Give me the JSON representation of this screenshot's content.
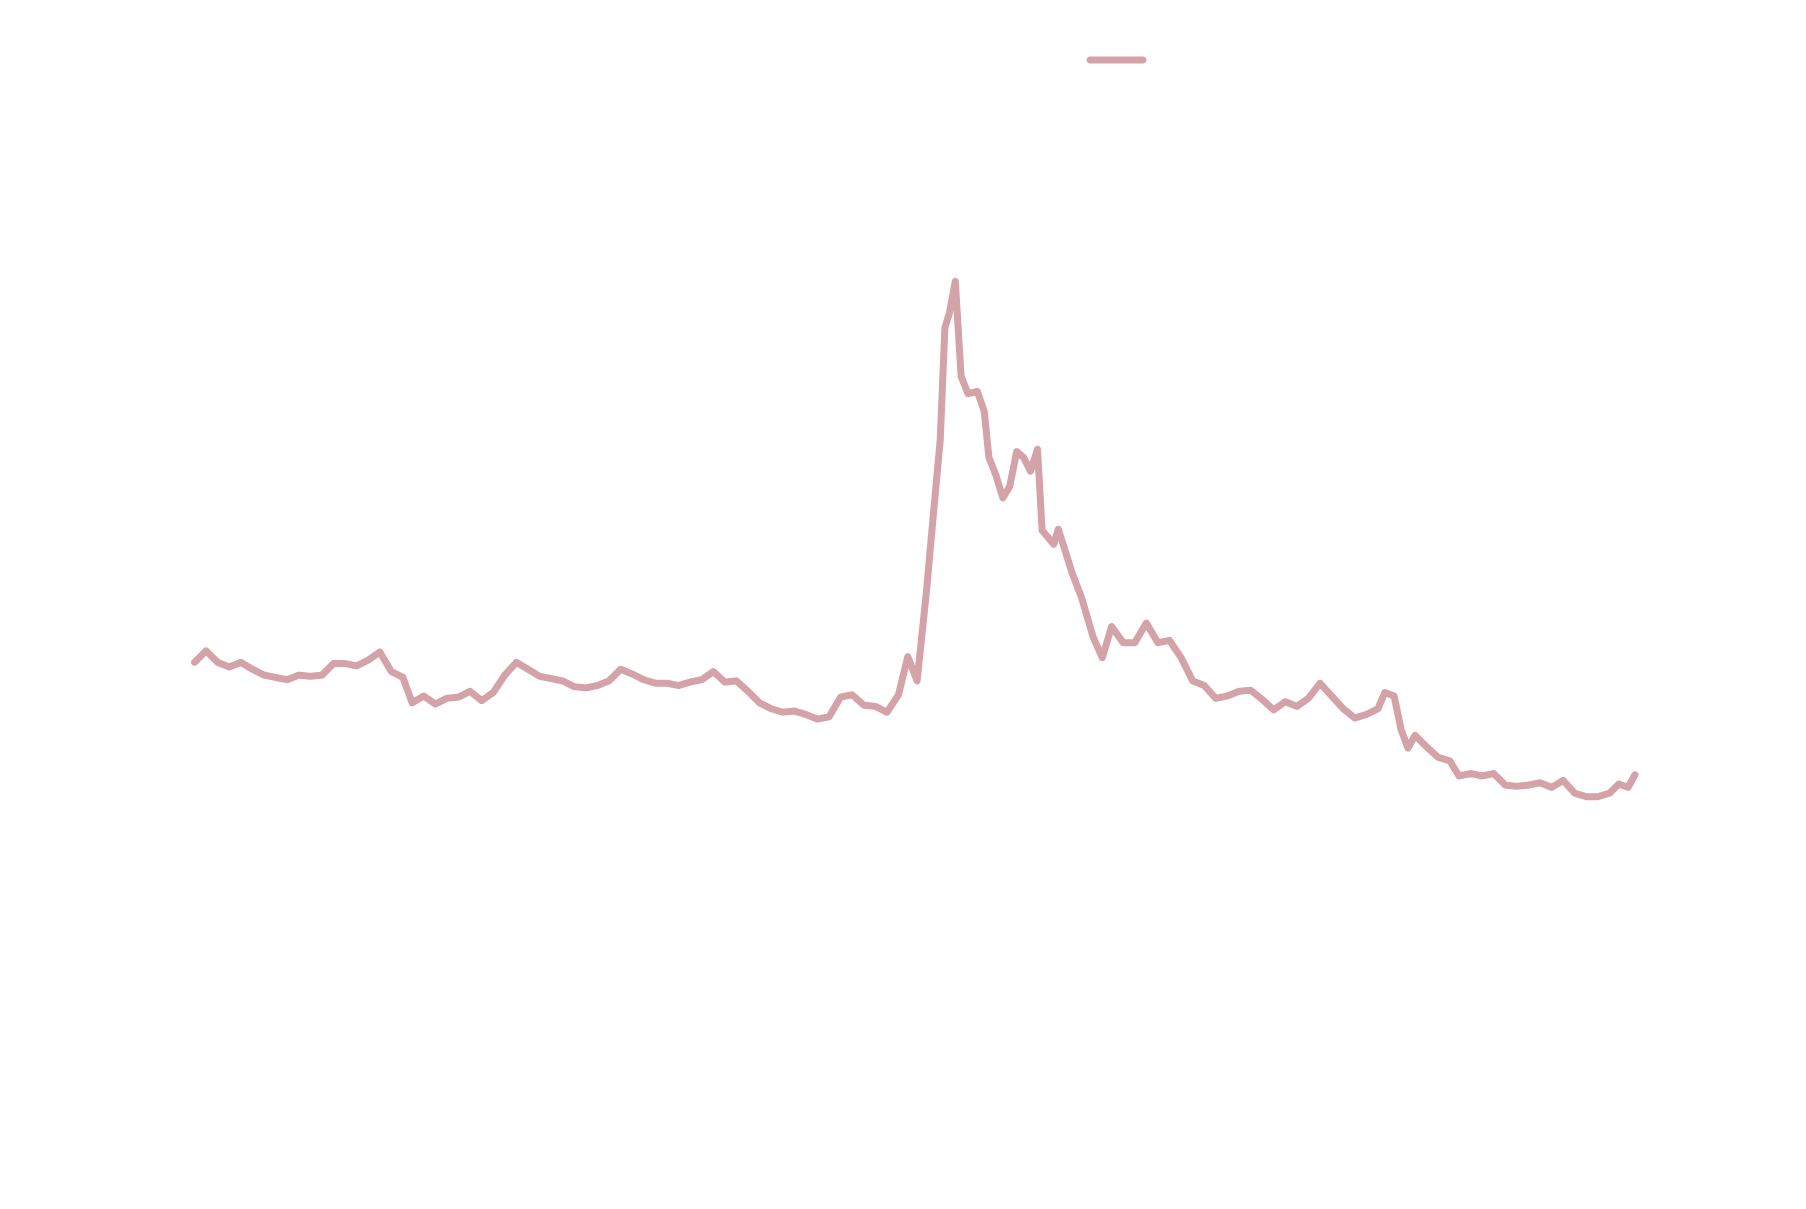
{
  "chart_data": {
    "type": "line",
    "x": [
      0,
      10,
      20,
      30,
      40,
      50,
      60,
      70,
      80,
      90,
      100,
      110,
      120,
      130,
      140,
      150,
      160,
      170,
      180,
      188,
      198,
      208,
      218,
      228,
      238,
      248,
      258,
      268,
      278,
      288,
      298,
      308,
      318,
      328,
      338,
      348,
      358,
      368,
      378,
      388,
      398,
      408,
      418,
      428,
      438,
      448,
      458,
      468,
      478,
      488,
      498,
      508,
      518,
      528,
      538,
      548,
      558,
      568,
      578,
      588,
      598,
      608,
      616,
      624,
      632,
      638,
      644,
      648,
      652,
      657,
      662,
      668,
      676,
      682,
      686,
      692,
      698,
      704,
      710,
      716,
      722,
      728,
      732,
      742,
      746,
      752,
      758,
      766,
      776,
      784,
      792,
      802,
      812,
      822,
      832,
      842,
      852,
      862,
      872,
      882,
      892,
      902,
      912,
      922,
      932,
      942,
      952,
      962,
      972,
      982,
      992,
      1002,
      1012,
      1022,
      1028,
      1036,
      1042,
      1048,
      1054,
      1064,
      1074,
      1084,
      1092,
      1102,
      1112,
      1122,
      1132,
      1142,
      1152,
      1162,
      1172,
      1182,
      1192,
      1202,
      1212,
      1222,
      1230,
      1238,
      1244
    ],
    "series": [
      {
        "color": "#d4a2a9",
        "values": [
          42.8,
          43.8,
          42.8,
          42.4,
          42.8,
          42.2,
          41.7,
          41.5,
          41.3,
          41.7,
          41.6,
          41.7,
          42.7,
          42.7,
          42.5,
          43.0,
          43.7,
          42.0,
          41.5,
          39.3,
          39.9,
          39.2,
          39.7,
          39.8,
          40.3,
          39.5,
          40.2,
          41.7,
          42.8,
          42.2,
          41.6,
          41.4,
          41.2,
          40.7,
          40.6,
          40.8,
          41.2,
          42.2,
          41.8,
          41.3,
          41.0,
          41.0,
          40.8,
          41.1,
          41.3,
          42.0,
          41.1,
          41.2,
          40.3,
          39.3,
          38.8,
          38.5,
          38.6,
          38.3,
          37.9,
          38.1,
          39.8,
          40.0,
          39.1,
          39.0,
          38.5,
          40.0,
          43.3,
          41.2,
          48.8,
          55.5,
          62.0,
          71.7,
          73.0,
          75.7,
          67.5,
          66.0,
          66.2,
          64.5,
          60.5,
          59.0,
          57.0,
          58.0,
          61.0,
          60.5,
          59.3,
          61.2,
          54.2,
          53.0,
          54.3,
          52.4,
          50.5,
          48.4,
          45.0,
          43.2,
          45.9,
          44.5,
          44.5,
          46.2,
          44.5,
          44.7,
          43.2,
          41.2,
          40.8,
          39.7,
          39.9,
          40.3,
          40.4,
          39.6,
          38.7,
          39.4,
          39.0,
          39.7,
          41.0,
          39.9,
          38.8,
          38.0,
          38.3,
          38.8,
          40.2,
          39.9,
          37.0,
          35.4,
          36.5,
          35.5,
          34.6,
          34.3,
          33.0,
          33.2,
          33.0,
          33.2,
          32.2,
          32.1,
          32.2,
          32.4,
          32.0,
          32.6,
          31.5,
          31.2,
          31.2,
          31.5,
          32.3,
          32.0,
          33.1
        ]
      }
    ],
    "xlim": [
      0,
      1244
    ],
    "ylim": [
      0,
      100
    ],
    "legend": "top"
  }
}
